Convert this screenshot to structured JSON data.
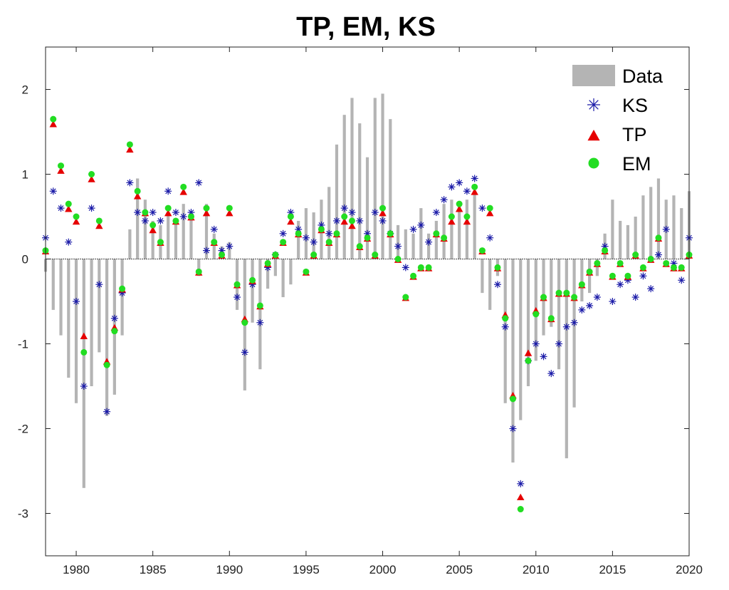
{
  "chart_data": {
    "type": "bar",
    "title": "TP, EM, KS",
    "xlabel": "",
    "ylabel": "",
    "xlim": [
      1978.0,
      2020.0
    ],
    "ylim": [
      -3.5,
      2.5
    ],
    "x_ticks": [
      1980,
      1985,
      1990,
      1995,
      2000,
      2005,
      2010,
      2015,
      2020
    ],
    "y_ticks": [
      -3,
      -2,
      -1,
      0,
      1,
      2
    ],
    "legend_position": "top-right",
    "grid": false,
    "colors": {
      "Data": "#b4b4b4",
      "KS": "#1a1aa8",
      "TP": "#e60000",
      "EM": "#22dd22"
    },
    "series": [
      {
        "name": "Data",
        "kind": "bar",
        "x": [
          1978.0,
          1978.5,
          1979.0,
          1979.5,
          1980.0,
          1980.5,
          1981.0,
          1981.5,
          1982.0,
          1982.5,
          1983.0,
          1983.5,
          1984.0,
          1984.5,
          1985.0,
          1985.5,
          1986.0,
          1986.5,
          1987.0,
          1987.5,
          1988.0,
          1988.5,
          1989.0,
          1989.5,
          1990.0,
          1990.5,
          1991.0,
          1991.5,
          1992.0,
          1992.5,
          1993.0,
          1993.5,
          1994.0,
          1994.5,
          1995.0,
          1995.5,
          1996.0,
          1996.5,
          1997.0,
          1997.5,
          1998.0,
          1998.5,
          1999.0,
          1999.5,
          2000.0,
          2000.5,
          2001.0,
          2001.5,
          2002.0,
          2002.5,
          2003.0,
          2003.5,
          2004.0,
          2004.5,
          2005.0,
          2005.5,
          2006.0,
          2006.5,
          2007.0,
          2007.5,
          2008.0,
          2008.5,
          2009.0,
          2009.5,
          2010.0,
          2010.5,
          2011.0,
          2011.5,
          2012.0,
          2012.5,
          2013.0,
          2013.5,
          2014.0,
          2014.5,
          2015.0,
          2015.5,
          2016.0,
          2016.5,
          2017.0,
          2017.5,
          2018.0,
          2018.5,
          2019.0,
          2019.5,
          2020.0
        ],
        "values": [
          -0.15,
          -0.6,
          -0.9,
          -1.4,
          -1.7,
          -2.7,
          -1.5,
          -1.1,
          -1.85,
          -1.6,
          -0.9,
          0.35,
          0.95,
          0.7,
          0.45,
          0.4,
          0.55,
          0.45,
          0.65,
          0.55,
          -0.2,
          0.65,
          0.3,
          0.15,
          0.2,
          -0.6,
          -1.55,
          -0.75,
          -1.3,
          -0.35,
          -0.2,
          -0.45,
          -0.3,
          0.45,
          0.6,
          0.55,
          0.7,
          0.85,
          1.35,
          1.7,
          1.9,
          1.6,
          1.2,
          1.9,
          1.95,
          1.65,
          0.4,
          0.35,
          0.3,
          0.6,
          0.3,
          0.45,
          0.65,
          0.7,
          0.65,
          0.7,
          0.8,
          -0.4,
          -0.6,
          -0.2,
          -1.7,
          -2.4,
          -1.9,
          -1.5,
          -1.2,
          -0.9,
          -0.8,
          -1.3,
          -2.35,
          -1.75,
          -0.5,
          -0.4,
          -0.2,
          0.3,
          0.7,
          0.45,
          0.4,
          0.5,
          0.75,
          0.85,
          0.95,
          0.7,
          0.75,
          0.6,
          0.8
        ]
      },
      {
        "name": "KS",
        "kind": "scatter",
        "marker": "asterisk",
        "x": [
          1978.0,
          1978.5,
          1979.0,
          1979.5,
          1980.0,
          1980.5,
          1981.0,
          1981.5,
          1982.0,
          1982.5,
          1983.0,
          1983.5,
          1984.0,
          1984.5,
          1985.0,
          1985.5,
          1986.0,
          1986.5,
          1987.0,
          1987.5,
          1988.0,
          1988.5,
          1989.0,
          1989.5,
          1990.0,
          1990.5,
          1991.0,
          1991.5,
          1992.0,
          1992.5,
          1993.0,
          1993.5,
          1994.0,
          1994.5,
          1995.0,
          1995.5,
          1996.0,
          1996.5,
          1997.0,
          1997.5,
          1998.0,
          1998.5,
          1999.0,
          1999.5,
          2000.0,
          2000.5,
          2001.0,
          2001.5,
          2002.0,
          2002.5,
          2003.0,
          2003.5,
          2004.0,
          2004.5,
          2005.0,
          2005.5,
          2006.0,
          2006.5,
          2007.0,
          2007.5,
          2008.0,
          2008.5,
          2009.0,
          2009.5,
          2010.0,
          2010.5,
          2011.0,
          2011.5,
          2012.0,
          2012.5,
          2013.0,
          2013.5,
          2014.0,
          2014.5,
          2015.0,
          2015.5,
          2016.0,
          2016.5,
          2017.0,
          2017.5,
          2018.0,
          2018.5,
          2019.0,
          2019.5,
          2020.0
        ],
        "values": [
          0.25,
          0.8,
          0.6,
          0.2,
          -0.5,
          -1.5,
          0.6,
          -0.3,
          -1.8,
          -0.7,
          -0.4,
          0.9,
          0.55,
          0.45,
          0.55,
          0.45,
          0.8,
          0.55,
          0.5,
          0.55,
          0.9,
          0.1,
          0.35,
          0.1,
          0.15,
          -0.45,
          -1.1,
          -0.3,
          -0.75,
          -0.1,
          0.05,
          0.3,
          0.55,
          0.35,
          0.25,
          0.2,
          0.4,
          0.3,
          0.45,
          0.6,
          0.55,
          0.45,
          0.3,
          0.55,
          0.45,
          0.3,
          0.15,
          -0.1,
          0.35,
          0.4,
          0.2,
          0.55,
          0.7,
          0.85,
          0.9,
          0.8,
          0.95,
          0.6,
          0.25,
          -0.3,
          -0.8,
          -2.0,
          -2.65,
          -1.2,
          -1.0,
          -1.15,
          -1.35,
          -1.0,
          -0.8,
          -0.75,
          -0.6,
          -0.55,
          -0.45,
          0.15,
          -0.5,
          -0.3,
          -0.25,
          -0.45,
          -0.2,
          -0.35,
          0.05,
          0.35,
          -0.05,
          -0.25,
          0.25
        ]
      },
      {
        "name": "TP",
        "kind": "scatter",
        "marker": "triangle",
        "x": [
          1978.0,
          1978.5,
          1979.0,
          1979.5,
          1980.0,
          1980.5,
          1981.0,
          1981.5,
          1982.0,
          1982.5,
          1983.0,
          1983.5,
          1984.0,
          1984.5,
          1985.0,
          1985.5,
          1986.0,
          1986.5,
          1987.0,
          1987.5,
          1988.0,
          1988.5,
          1989.0,
          1989.5,
          1990.0,
          1990.5,
          1991.0,
          1991.5,
          1992.0,
          1992.5,
          1993.0,
          1993.5,
          1994.0,
          1994.5,
          1995.0,
          1995.5,
          1996.0,
          1996.5,
          1997.0,
          1997.5,
          1998.0,
          1998.5,
          1999.0,
          1999.5,
          2000.0,
          2000.5,
          2001.0,
          2001.5,
          2002.0,
          2002.5,
          2003.0,
          2003.5,
          2004.0,
          2004.5,
          2005.0,
          2005.5,
          2006.0,
          2006.5,
          2007.0,
          2007.5,
          2008.0,
          2008.5,
          2009.0,
          2009.5,
          2010.0,
          2010.5,
          2011.0,
          2011.5,
          2012.0,
          2012.5,
          2013.0,
          2013.5,
          2014.0,
          2014.5,
          2015.0,
          2015.5,
          2016.0,
          2016.5,
          2017.0,
          2017.5,
          2018.0,
          2018.5,
          2019.0,
          2019.5,
          2020.0
        ],
        "values": [
          0.1,
          1.6,
          1.05,
          0.6,
          0.45,
          -0.9,
          0.95,
          0.4,
          -1.2,
          -0.8,
          -0.35,
          1.3,
          0.75,
          0.55,
          0.35,
          0.2,
          0.55,
          0.45,
          0.8,
          0.5,
          -0.15,
          0.55,
          0.2,
          0.05,
          0.55,
          -0.3,
          -0.7,
          -0.25,
          -0.55,
          -0.05,
          0.05,
          0.2,
          0.45,
          0.3,
          -0.15,
          0.05,
          0.35,
          0.2,
          0.3,
          0.45,
          0.4,
          0.15,
          0.25,
          0.05,
          0.55,
          0.3,
          0.0,
          -0.45,
          -0.2,
          -0.1,
          -0.1,
          0.3,
          0.25,
          0.45,
          0.6,
          0.45,
          0.8,
          0.1,
          0.55,
          -0.1,
          -0.65,
          -1.6,
          -2.8,
          -1.1,
          -0.6,
          -0.45,
          -0.7,
          -0.4,
          -0.4,
          -0.45,
          -0.3,
          -0.15,
          -0.05,
          0.1,
          -0.2,
          -0.05,
          -0.2,
          0.05,
          -0.1,
          0.0,
          0.25,
          -0.05,
          -0.1,
          -0.1,
          0.05
        ]
      },
      {
        "name": "EM",
        "kind": "scatter",
        "marker": "circle",
        "x": [
          1978.0,
          1978.5,
          1979.0,
          1979.5,
          1980.0,
          1980.5,
          1981.0,
          1981.5,
          1982.0,
          1982.5,
          1983.0,
          1983.5,
          1984.0,
          1984.5,
          1985.0,
          1985.5,
          1986.0,
          1986.5,
          1987.0,
          1987.5,
          1988.0,
          1988.5,
          1989.0,
          1989.5,
          1990.0,
          1990.5,
          1991.0,
          1991.5,
          1992.0,
          1992.5,
          1993.0,
          1993.5,
          1994.0,
          1994.5,
          1995.0,
          1995.5,
          1996.0,
          1996.5,
          1997.0,
          1997.5,
          1998.0,
          1998.5,
          1999.0,
          1999.5,
          2000.0,
          2000.5,
          2001.0,
          2001.5,
          2002.0,
          2002.5,
          2003.0,
          2003.5,
          2004.0,
          2004.5,
          2005.0,
          2005.5,
          2006.0,
          2006.5,
          2007.0,
          2007.5,
          2008.0,
          2008.5,
          2009.0,
          2009.5,
          2010.0,
          2010.5,
          2011.0,
          2011.5,
          2012.0,
          2012.5,
          2013.0,
          2013.5,
          2014.0,
          2014.5,
          2015.0,
          2015.5,
          2016.0,
          2016.5,
          2017.0,
          2017.5,
          2018.0,
          2018.5,
          2019.0,
          2019.5,
          2020.0
        ],
        "values": [
          0.1,
          1.65,
          1.1,
          0.65,
          0.5,
          -1.1,
          1.0,
          0.45,
          -1.25,
          -0.85,
          -0.35,
          1.35,
          0.8,
          0.55,
          0.4,
          0.2,
          0.6,
          0.45,
          0.85,
          0.5,
          -0.15,
          0.6,
          0.2,
          0.05,
          0.6,
          -0.3,
          -0.75,
          -0.25,
          -0.55,
          -0.05,
          0.05,
          0.2,
          0.5,
          0.3,
          -0.15,
          0.05,
          0.35,
          0.2,
          0.3,
          0.5,
          0.45,
          0.15,
          0.25,
          0.05,
          0.6,
          0.3,
          0.0,
          -0.45,
          -0.2,
          -0.1,
          -0.1,
          0.3,
          0.25,
          0.5,
          0.65,
          0.5,
          0.85,
          0.1,
          0.6,
          -0.1,
          -0.7,
          -1.65,
          -2.95,
          -1.2,
          -0.65,
          -0.45,
          -0.7,
          -0.4,
          -0.4,
          -0.45,
          -0.3,
          -0.15,
          -0.05,
          0.1,
          -0.2,
          -0.05,
          -0.2,
          0.05,
          -0.1,
          0.0,
          0.25,
          -0.05,
          -0.1,
          -0.1,
          0.05
        ]
      }
    ]
  }
}
